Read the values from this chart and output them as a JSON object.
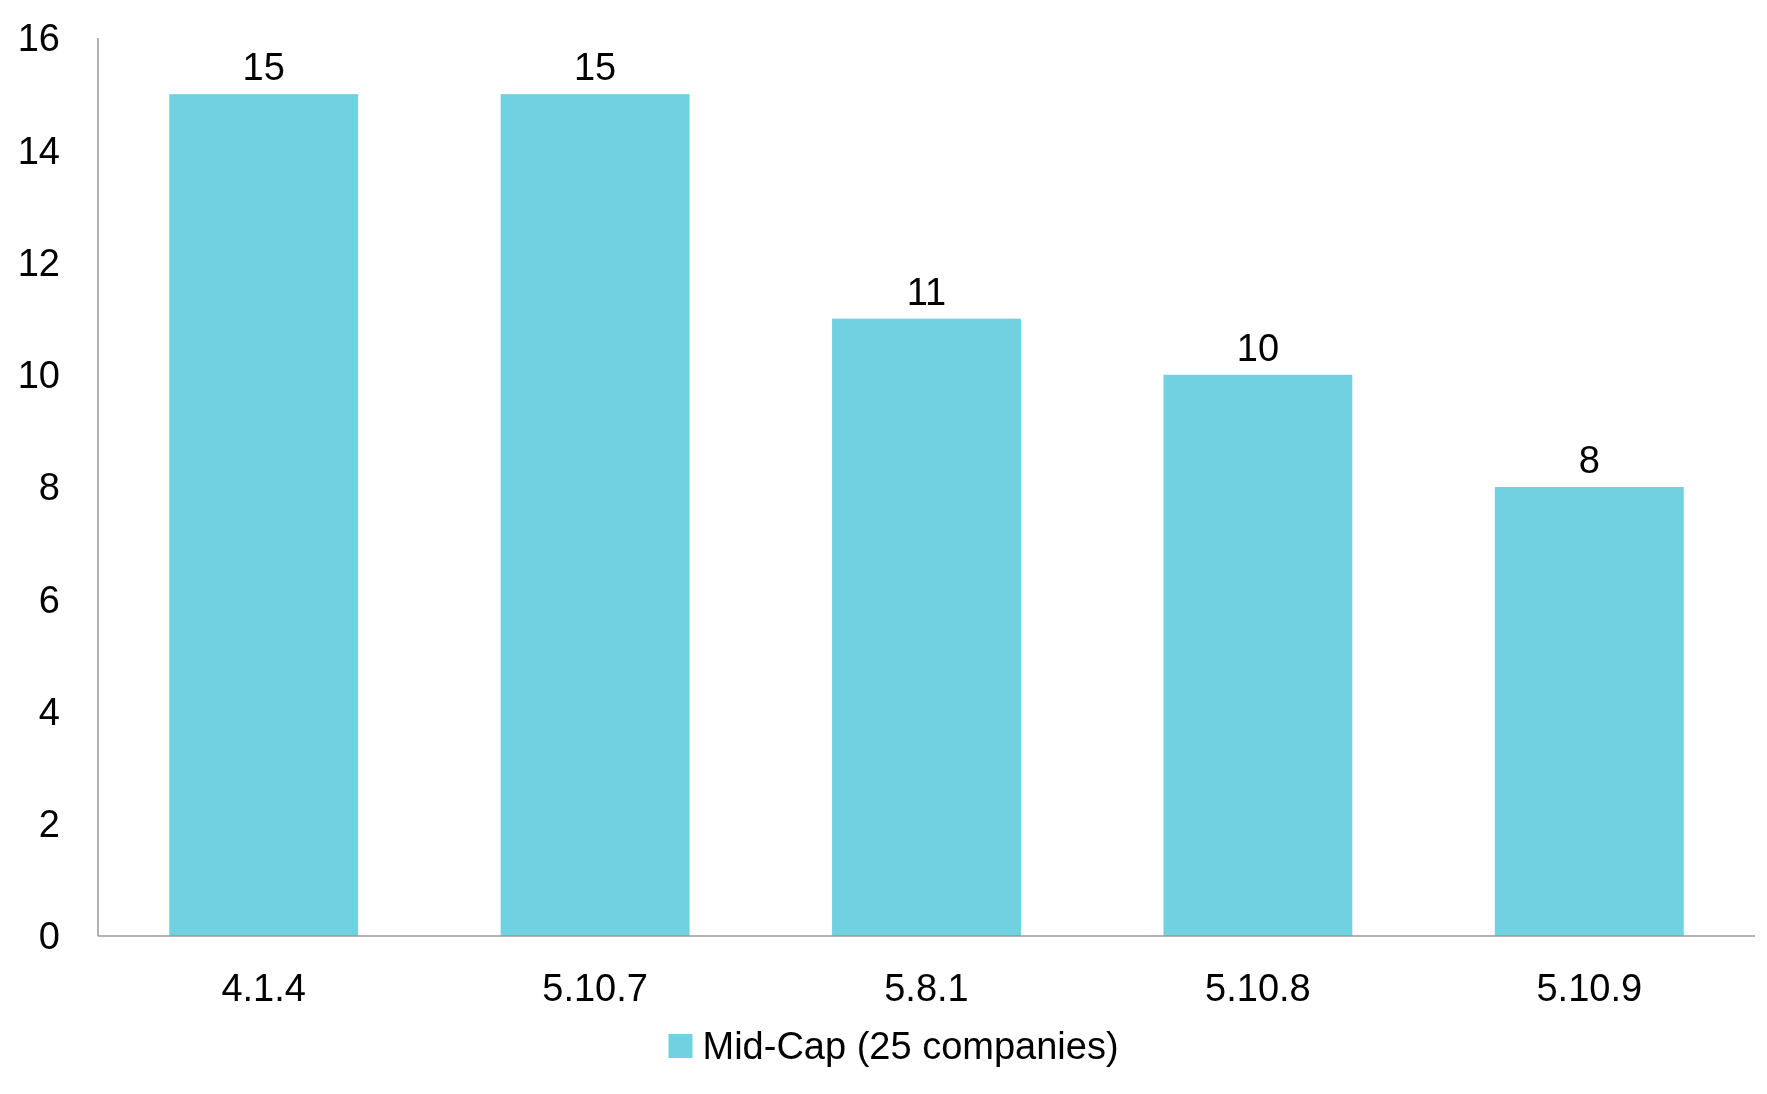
{
  "chart_data": {
    "type": "bar",
    "categories": [
      "4.1.4",
      "5.10.7",
      "5.8.1",
      "5.10.8",
      "5.10.9"
    ],
    "series": [
      {
        "name": "Mid-Cap (25 companies)",
        "color": "#72d1e0",
        "values": [
          15,
          15,
          11,
          10,
          8
        ]
      }
    ],
    "ylim": [
      0,
      16
    ],
    "yticks": [
      0,
      2,
      4,
      6,
      8,
      10,
      12,
      14,
      16
    ],
    "data_labels": true,
    "legend": "bottom",
    "grid": false
  }
}
